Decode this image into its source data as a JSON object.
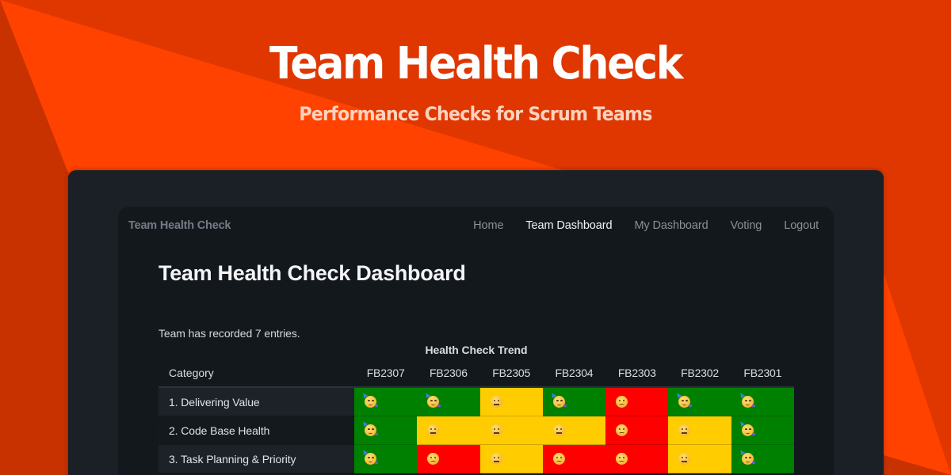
{
  "hero": {
    "title": "Team Health Check",
    "subtitle": "Performance Checks for Scrum Teams"
  },
  "colors": {
    "background": "#e03700",
    "bright_triangle": "#ff4200",
    "dark_triangle": "#c83100",
    "panel_outer": "#1b2026",
    "panel_inner": "#13181d",
    "status_good": "#008000",
    "status_ok": "#ffcc00",
    "status_bad": "#ff0000"
  },
  "navbar": {
    "brand": "Team Health Check",
    "links": [
      {
        "label": "Home",
        "active": false
      },
      {
        "label": "Team Dashboard",
        "active": true
      },
      {
        "label": "My Dashboard",
        "active": false
      },
      {
        "label": "Voting",
        "active": false
      },
      {
        "label": "Logout",
        "active": false
      }
    ]
  },
  "page": {
    "title": "Team Health Check Dashboard",
    "entries_text": "Team has recorded 7 entries."
  },
  "table": {
    "caption": "Health Check Trend",
    "category_header": "Category",
    "columns": [
      "FB2307",
      "FB2306",
      "FB2305",
      "FB2304",
      "FB2303",
      "FB2302",
      "FB2301"
    ],
    "legend": {
      "good": {
        "emoji": "party-face-icon",
        "glyph": "🥳",
        "color": "#008000"
      },
      "ok": {
        "emoji": "neutral-face-icon",
        "glyph": "😐",
        "color": "#ffcc00"
      },
      "bad": {
        "emoji": "frowning-face-icon",
        "glyph": "🙁",
        "color": "#ff0000"
      }
    },
    "rows": [
      {
        "category": "1. Delivering Value",
        "values": [
          "good",
          "good",
          "ok",
          "good",
          "bad",
          "good",
          "good"
        ]
      },
      {
        "category": "2. Code Base Health",
        "values": [
          "good",
          "ok",
          "ok",
          "ok",
          "bad",
          "ok",
          "good"
        ]
      },
      {
        "category": "3. Task Planning & Priority",
        "values": [
          "good",
          "bad",
          "ok",
          "bad",
          "bad",
          "ok",
          "good"
        ]
      }
    ]
  }
}
